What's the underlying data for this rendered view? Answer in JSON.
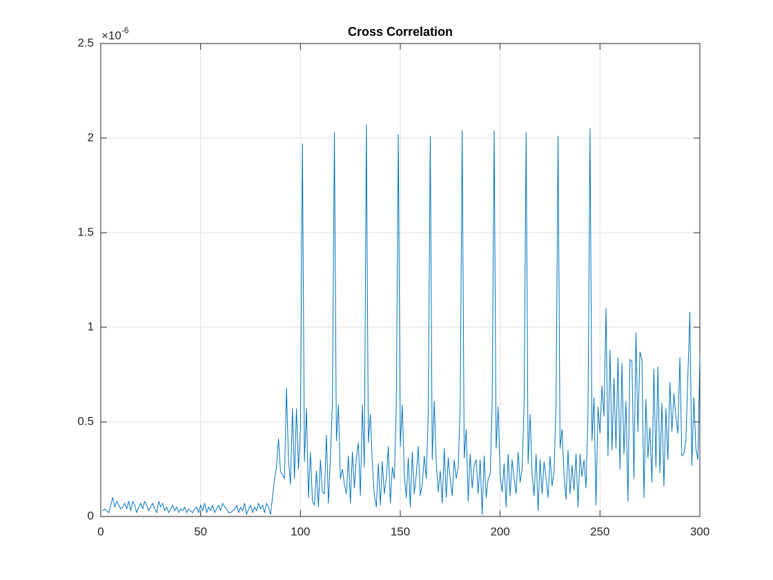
{
  "chart_data": {
    "type": "line",
    "title": "Cross Correlation",
    "y_scale_base": "×10",
    "y_scale_exponent": "-6",
    "xlim": [
      0,
      300
    ],
    "xticks": [
      0,
      50,
      100,
      150,
      200,
      250,
      300
    ],
    "ylim": [
      0,
      2.5
    ],
    "yticks": [
      0,
      0.5,
      1,
      1.5,
      2,
      2.5
    ],
    "grid": true,
    "x": [
      1,
      2,
      3,
      4,
      5,
      6,
      7,
      8,
      9,
      10,
      11,
      12,
      13,
      14,
      15,
      16,
      17,
      18,
      19,
      20,
      21,
      22,
      23,
      24,
      25,
      26,
      27,
      28,
      29,
      30,
      31,
      32,
      33,
      34,
      35,
      36,
      37,
      38,
      39,
      40,
      41,
      42,
      43,
      44,
      45,
      46,
      47,
      48,
      49,
      50,
      51,
      52,
      53,
      54,
      55,
      56,
      57,
      58,
      59,
      60,
      61,
      62,
      63,
      64,
      65,
      66,
      67,
      68,
      69,
      70,
      71,
      72,
      73,
      74,
      75,
      76,
      77,
      78,
      79,
      80,
      81,
      82,
      83,
      84,
      85,
      86,
      87,
      88,
      89,
      90,
      91,
      92,
      93,
      94,
      95,
      96,
      97,
      98,
      99,
      100,
      101,
      102,
      103,
      104,
      105,
      106,
      107,
      108,
      109,
      110,
      111,
      112,
      113,
      114,
      115,
      116,
      117,
      118,
      119,
      120,
      121,
      122,
      123,
      124,
      125,
      126,
      127,
      128,
      129,
      130,
      131,
      132,
      133,
      134,
      135,
      136,
      137,
      138,
      139,
      140,
      141,
      142,
      143,
      144,
      145,
      146,
      147,
      148,
      149,
      150,
      151,
      152,
      153,
      154,
      155,
      156,
      157,
      158,
      159,
      160,
      161,
      162,
      163,
      164,
      165,
      166,
      167,
      168,
      169,
      170,
      171,
      172,
      173,
      174,
      175,
      176,
      177,
      178,
      179,
      180,
      181,
      182,
      183,
      184,
      185,
      186,
      187,
      188,
      189,
      190,
      191,
      192,
      193,
      194,
      195,
      196,
      197,
      198,
      199,
      200,
      201,
      202,
      203,
      204,
      205,
      206,
      207,
      208,
      209,
      210,
      211,
      212,
      213,
      214,
      215,
      216,
      217,
      218,
      219,
      220,
      221,
      222,
      223,
      224,
      225,
      226,
      227,
      228,
      229,
      230,
      231,
      232,
      233,
      234,
      235,
      236,
      237,
      238,
      239,
      240,
      241,
      242,
      243,
      244,
      245,
      246,
      247,
      248,
      249,
      250,
      251,
      252,
      253,
      254,
      255,
      256,
      257,
      258,
      259,
      260,
      261,
      262,
      263,
      264,
      265,
      266,
      267,
      268,
      269,
      270,
      271,
      272,
      273,
      274,
      275,
      276,
      277,
      278,
      279,
      280,
      281,
      282,
      283,
      284,
      285,
      286,
      287,
      288,
      289,
      290,
      291,
      292,
      293,
      294,
      295,
      296,
      297,
      298,
      299,
      300
    ],
    "series": [
      {
        "color": "#0072bd",
        "values": [
          0.03,
          0.04,
          0.03,
          0.02,
          0.06,
          0.1,
          0.05,
          0.08,
          0.06,
          0.04,
          0.05,
          0.07,
          0.04,
          0.08,
          0.03,
          0.08,
          0.06,
          0.02,
          0.05,
          0.07,
          0.04,
          0.08,
          0.06,
          0.03,
          0.05,
          0.07,
          0.04,
          0.02,
          0.08,
          0.05,
          0.07,
          0.03,
          0.05,
          0.02,
          0.04,
          0.06,
          0.03,
          0.05,
          0.02,
          0.04,
          0.03,
          0.05,
          0.02,
          0.04,
          0.03,
          0.02,
          0.04,
          0.05,
          0.02,
          0.06,
          0.03,
          0.07,
          0.02,
          0.05,
          0.03,
          0.06,
          0.02,
          0.04,
          0.06,
          0.03,
          0.07,
          0.05,
          0.04,
          0.02,
          0.02,
          0.03,
          0.04,
          0.06,
          0.02,
          0.05,
          0.03,
          0.07,
          0.01,
          0.04,
          0.06,
          0.02,
          0.05,
          0.03,
          0.07,
          0.04,
          0.06,
          0.02,
          0.07,
          0.05,
          0.01,
          0.1,
          0.2,
          0.26,
          0.41,
          0.24,
          0.22,
          0.2,
          0.68,
          0.3,
          0.17,
          0.57,
          0.2,
          0.57,
          0.25,
          0.47,
          1.97,
          0.29,
          0.57,
          0.1,
          0.34,
          0.08,
          0.06,
          0.24,
          0.05,
          0.3,
          0.13,
          0.12,
          0.43,
          0.07,
          0.31,
          0.6,
          2.03,
          0.4,
          0.59,
          0.2,
          0.25,
          0.17,
          0.12,
          0.32,
          0.07,
          0.34,
          0.15,
          0.31,
          0.39,
          0.11,
          0.59,
          0.26,
          2.07,
          0.39,
          0.54,
          0.28,
          0.11,
          0.05,
          0.28,
          0.06,
          0.29,
          0.12,
          0.2,
          0.37,
          0.07,
          0.26,
          0.2,
          0.58,
          2.02,
          0.37,
          0.59,
          0.22,
          0.1,
          0.31,
          0.05,
          0.34,
          0.12,
          0.22,
          0.37,
          0.11,
          0.17,
          0.32,
          0.2,
          0.55,
          2.01,
          0.3,
          0.61,
          0.28,
          0.13,
          0.24,
          0.07,
          0.36,
          0.1,
          0.31,
          0.2,
          0.11,
          0.3,
          0.2,
          0.26,
          0.59,
          2.04,
          0.31,
          0.46,
          0.08,
          0.33,
          0.15,
          0.27,
          0.3,
          0.12,
          0.3,
          0.01,
          0.32,
          0.1,
          0.2,
          0.22,
          0.59,
          2.04,
          0.36,
          0.58,
          0.22,
          0.13,
          0.28,
          0.05,
          0.33,
          0.11,
          0.3,
          0.2,
          0.12,
          0.34,
          0.18,
          0.25,
          0.59,
          2.03,
          0.28,
          0.54,
          0.22,
          0.11,
          0.33,
          0.03,
          0.3,
          0.12,
          0.29,
          0.2,
          0.1,
          0.32,
          0.16,
          0.24,
          0.6,
          2.01,
          0.36,
          0.46,
          0.22,
          0.09,
          0.35,
          0.12,
          0.27,
          0.14,
          0.33,
          0.05,
          0.33,
          0.21,
          0.3,
          0.15,
          0.55,
          2.05,
          0.4,
          0.63,
          0.06,
          0.58,
          0.44,
          0.69,
          0.53,
          1.1,
          0.32,
          0.88,
          0.35,
          0.73,
          0.36,
          0.84,
          0.25,
          0.81,
          0.33,
          0.61,
          0.08,
          0.83,
          0.82,
          0.2,
          0.97,
          0.45,
          0.87,
          0.83,
          0.1,
          0.62,
          0.31,
          0.47,
          0.18,
          0.78,
          0.26,
          0.79,
          0.23,
          0.6,
          0.16,
          0.57,
          0.3,
          0.71,
          0.45,
          0.65,
          0.53,
          0.44,
          0.84,
          0.32,
          0.33,
          0.4,
          0.74,
          1.08,
          0.27,
          0.63,
          0.36,
          0.3,
          0.85
        ]
      }
    ]
  }
}
